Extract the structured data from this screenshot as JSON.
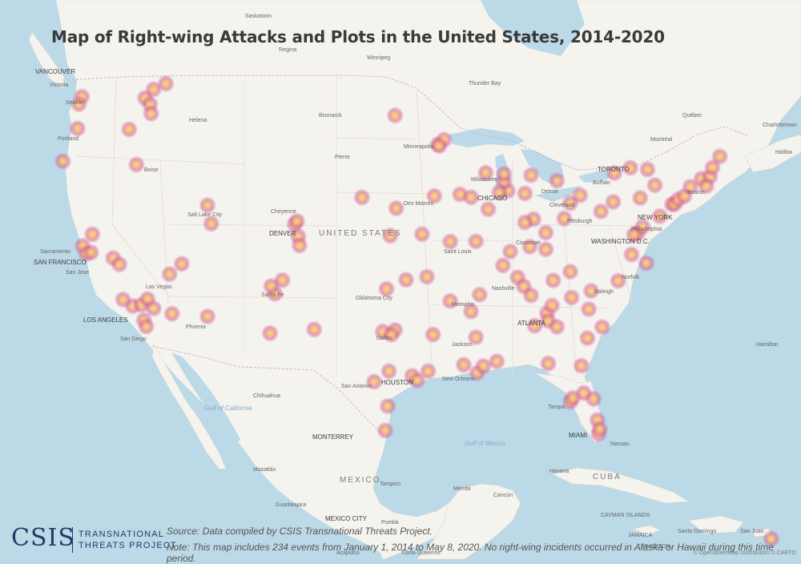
{
  "title": "Map of Right-wing Attacks and Plots in the United States, 2014-2020",
  "source_text": "Source: Data compiled by CSIS Transnational Threats Project.",
  "note_text": "Note: This map includes 234 events from January 1, 2014 to May 8, 2020. No right-wing incidents occurred in Alaska or Hawaii during this time period.",
  "logo": {
    "name": "CSIS",
    "program_line1": "TRANSNATIONAL",
    "program_line2": "THREATS PROJECT"
  },
  "attribution": "© OpenStreetMap contributors © CARTO",
  "colors": {
    "water": "#bcd9e8",
    "land": "#f5f3ee",
    "heat_core": "#f2c77b",
    "heat_ring": "#c9529e"
  },
  "country_labels": {
    "united_states": "UNITED STATES",
    "mexico": "MEXICO",
    "cuba": "CUBA"
  },
  "city_labels": {
    "saskatoon": "Saskatoon",
    "regina": "Regina",
    "winnipeg": "Winnipeg",
    "thunder_bay": "Thunder Bay",
    "vancouver": "VANCOUVER",
    "victoria": "Victoria",
    "seattle": "Seattle",
    "portland": "Portland",
    "helena": "Helena",
    "bismarck": "Bismarck",
    "pierre": "Pierre",
    "boise": "Boise",
    "minneapolis": "Minneapolis",
    "toronto": "TORONTO",
    "quebec": "Québec",
    "montreal": "Montréal",
    "charlottetown": "Charlottetown",
    "halifax": "Halifax",
    "buffalo": "Buffalo",
    "boston": "Boston",
    "milwaukee": "Milwaukee",
    "detroit": "Detroit",
    "chicago": "CHICAGO",
    "cleveland": "Cleveland",
    "des_moines": "Des Moines",
    "salt_lake_city": "Salt Lake City",
    "cheyenne": "Cheyenne",
    "denver": "DENVER",
    "pittsburgh": "Pittsburgh",
    "new_york": "NEW YORK",
    "philadelphia": "Philadelphia",
    "washington": "WASHINGTON D.C.",
    "sacramento": "Sacramento",
    "san_francisco": "SAN FRANCISCO",
    "san_jose": "San Jose",
    "las_vegas": "Las Vegas",
    "saint_louis": "Saint Louis",
    "cincinnati": "Cincinnati",
    "norfolk": "Norfolk",
    "nashville": "Nashville",
    "raleigh": "Raleigh",
    "santa_fe": "Santa Fe",
    "oklahoma_city": "Oklahoma City",
    "memphis": "Memphis",
    "los_angeles": "LOS ANGELES",
    "phoenix": "Phoenix",
    "atlanta": "ATLANTA",
    "san_diego": "San Diego",
    "dallas": "Dallas",
    "jackson": "Jackson",
    "hamilton": "Hamilton",
    "new_orleans": "New Orleans",
    "houston": "HOUSTON",
    "san_antonio": "San Antonio",
    "chihuahua": "Chihuahua",
    "tampa": "Tampa",
    "miami": "MIAMI",
    "nassau": "Nassau",
    "monterrey": "MONTERREY",
    "havana": "Havana",
    "tampico": "Tampico",
    "mazatlan": "Mazatlán",
    "guadalajara": "Guadalajara",
    "merida": "Mérida",
    "cancun": "Cancún",
    "mexico_city": "MEXICO CITY",
    "puebla": "Puebla",
    "acapulco": "Acapulco",
    "tuxtla": "Tuxtla Gutiérrez",
    "kingston": "KINGSTON",
    "santo_domingo": "Santo Domingo",
    "san_juan": "San Juan",
    "cayman": "CAYMAN ISLANDS",
    "jamaica": "JAMAICA"
  },
  "water_labels": {
    "gulf_of_california": "Gulf of California",
    "gulf_of_mexico": "Gulf of Mexico"
  },
  "event_count": 234,
  "incidents": [
    [
      -122.35,
      47.6
    ],
    [
      -122.6,
      47.1
    ],
    [
      -117.2,
      47.7
    ],
    [
      -116.5,
      48.3
    ],
    [
      -115.5,
      48.7
    ],
    [
      -116.8,
      47.3
    ],
    [
      -116.7,
      46.7
    ],
    [
      -122.7,
      45.5
    ],
    [
      -118.5,
      45.6
    ],
    [
      -123.9,
      43.3
    ],
    [
      -117.9,
      43.3
    ],
    [
      -112.1,
      40.8
    ],
    [
      -111.8,
      39.6
    ],
    [
      -121.5,
      38.6
    ],
    [
      -122.3,
      37.8
    ],
    [
      -122.0,
      37.3
    ],
    [
      -121.6,
      37.4
    ],
    [
      -119.8,
      37.1
    ],
    [
      -119.3,
      36.7
    ],
    [
      -115.2,
      36.2
    ],
    [
      -114.2,
      36.9
    ],
    [
      -118.2,
      34.0
    ],
    [
      -117.5,
      34.1
    ],
    [
      -117.0,
      34.5
    ],
    [
      -116.5,
      33.9
    ],
    [
      -117.3,
      33.1
    ],
    [
      -117.1,
      32.7
    ],
    [
      -115.0,
      33.6
    ],
    [
      -112.1,
      33.5
    ],
    [
      -119.0,
      34.4
    ],
    [
      -106.6,
      35.1
    ],
    [
      -106.0,
      36.0
    ],
    [
      -105.0,
      39.7
    ],
    [
      -104.8,
      39.9
    ],
    [
      -104.7,
      38.9
    ],
    [
      -104.6,
      38.3
    ],
    [
      -106.9,
      35.6
    ],
    [
      -107.0,
      32.5
    ],
    [
      -103.4,
      32.8
    ],
    [
      -97.5,
      35.5
    ],
    [
      -95.9,
      36.1
    ],
    [
      -97.2,
      39.0
    ],
    [
      -99.5,
      41.5
    ],
    [
      -96.7,
      40.8
    ],
    [
      -94.6,
      39.1
    ],
    [
      -92.3,
      38.6
    ],
    [
      -90.2,
      38.6
    ],
    [
      -93.6,
      41.6
    ],
    [
      -93.3,
      45.0
    ],
    [
      -92.8,
      45.3
    ],
    [
      -93.2,
      44.9
    ],
    [
      -96.8,
      46.9
    ],
    [
      -97.8,
      32.7
    ],
    [
      -96.8,
      32.8
    ],
    [
      -97.1,
      32.5
    ],
    [
      -97.3,
      30.1
    ],
    [
      -95.4,
      29.8
    ],
    [
      -95.0,
      29.5
    ],
    [
      -94.1,
      30.1
    ],
    [
      -98.5,
      29.4
    ],
    [
      -97.4,
      27.8
    ],
    [
      -97.6,
      26.2
    ],
    [
      -93.7,
      32.5
    ],
    [
      -90.2,
      32.3
    ],
    [
      -91.2,
      30.5
    ],
    [
      -90.1,
      29.95
    ],
    [
      -89.6,
      30.4
    ],
    [
      -88.5,
      30.7
    ],
    [
      -89.9,
      35.1
    ],
    [
      -90.6,
      34.0
    ],
    [
      -92.3,
      34.7
    ],
    [
      -94.2,
      36.3
    ],
    [
      -86.8,
      36.2
    ],
    [
      -86.3,
      35.6
    ],
    [
      -85.7,
      35.0
    ],
    [
      -84.4,
      33.8
    ],
    [
      -84.0,
      34.3
    ],
    [
      -85.4,
      33.0
    ],
    [
      -84.3,
      33.3
    ],
    [
      -83.6,
      32.9
    ],
    [
      -81.1,
      32.1
    ],
    [
      -81.6,
      30.3
    ],
    [
      -82.5,
      27.95
    ],
    [
      -82.3,
      28.2
    ],
    [
      -81.4,
      28.5
    ],
    [
      -80.6,
      28.1
    ],
    [
      -80.2,
      25.8
    ],
    [
      -80.3,
      26.7
    ],
    [
      -80.1,
      26.1
    ],
    [
      -84.3,
      30.5
    ],
    [
      -87.6,
      41.9
    ],
    [
      -87.9,
      42.5
    ],
    [
      -87.9,
      43.0
    ],
    [
      -89.4,
      43.1
    ],
    [
      -88.3,
      41.8
    ],
    [
      -86.2,
      41.7
    ],
    [
      -85.7,
      42.9
    ],
    [
      -84.5,
      39.1
    ],
    [
      -85.5,
      40.0
    ],
    [
      -86.2,
      39.8
    ],
    [
      -83.0,
      40.0
    ],
    [
      -82.5,
      41.0
    ],
    [
      -83.6,
      42.5
    ],
    [
      -81.7,
      41.5
    ],
    [
      -80.0,
      40.4
    ],
    [
      -79.0,
      41.0
    ],
    [
      -78.9,
      42.9
    ],
    [
      -77.6,
      43.2
    ],
    [
      -76.2,
      43.05
    ],
    [
      -75.6,
      42.0
    ],
    [
      -76.8,
      41.2
    ],
    [
      -75.2,
      39.95
    ],
    [
      -74.2,
      40.7
    ],
    [
      -74.0,
      40.7
    ],
    [
      -73.7,
      41.0
    ],
    [
      -73.2,
      41.2
    ],
    [
      -72.7,
      41.8
    ],
    [
      -71.8,
      42.3
    ],
    [
      -71.1,
      42.4
    ],
    [
      -71.4,
      41.8
    ],
    [
      -70.9,
      43.0
    ],
    [
      -70.3,
      43.7
    ],
    [
      -77.0,
      38.9
    ],
    [
      -77.3,
      38.8
    ],
    [
      -76.6,
      39.3
    ],
    [
      -77.5,
      37.5
    ],
    [
      -76.3,
      36.9
    ],
    [
      -78.6,
      35.8
    ],
    [
      -80.8,
      35.2
    ],
    [
      -79.9,
      32.8
    ],
    [
      -82.4,
      34.8
    ],
    [
      -81.0,
      34.0
    ],
    [
      -83.9,
      35.95
    ],
    [
      -82.5,
      36.5
    ],
    [
      -84.5,
      38.0
    ],
    [
      -85.8,
      38.2
    ],
    [
      -88.0,
      37.0
    ],
    [
      -89.2,
      40.7
    ],
    [
      -91.5,
      41.7
    ],
    [
      -90.6,
      41.5
    ],
    [
      -87.4,
      37.9
    ],
    [
      -66.1,
      18.4
    ]
  ]
}
